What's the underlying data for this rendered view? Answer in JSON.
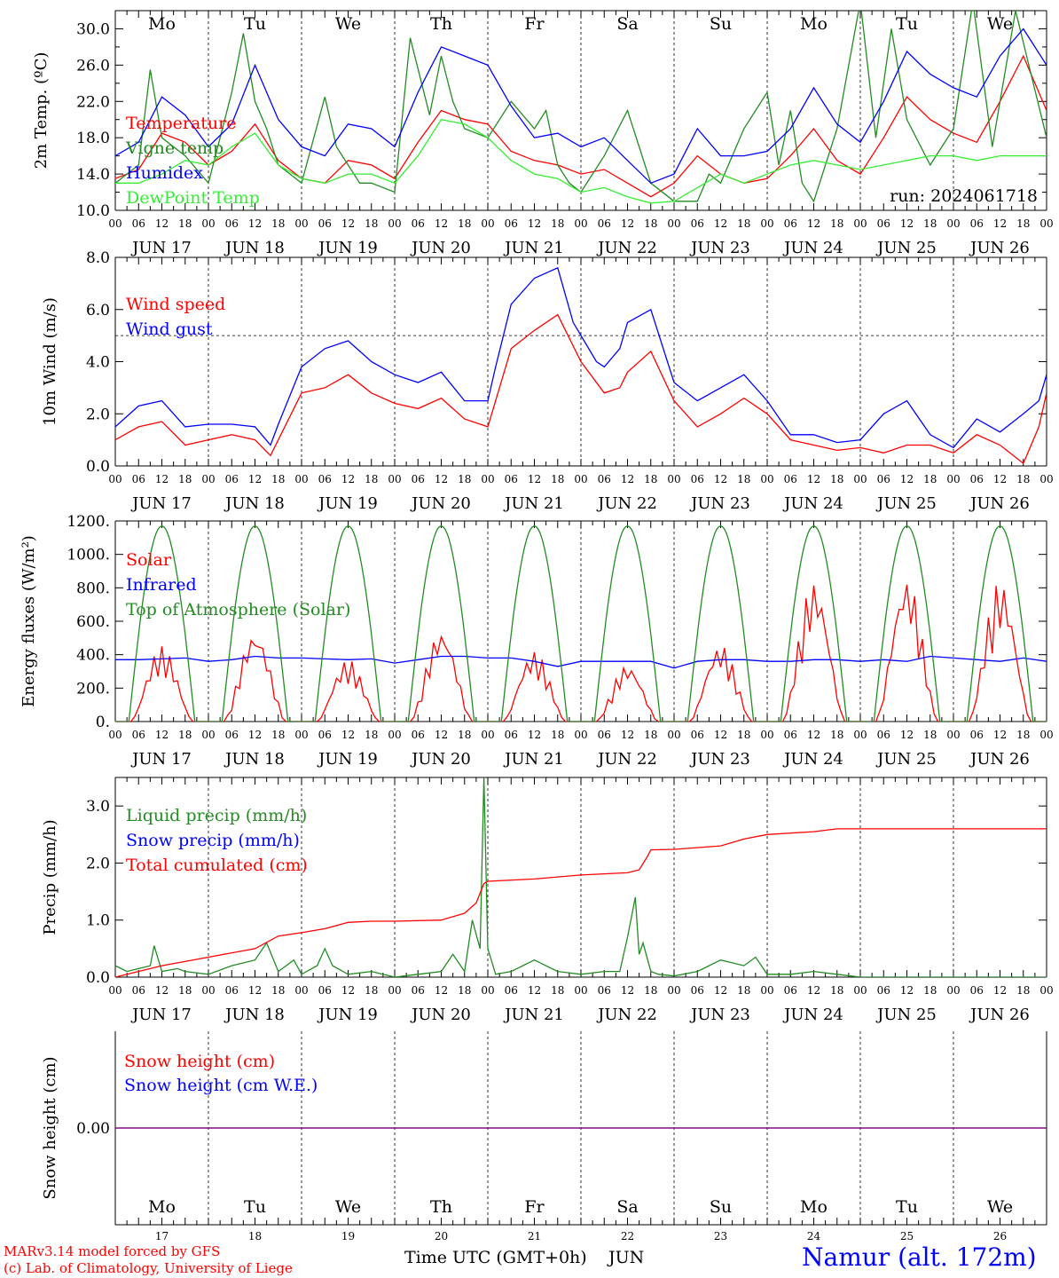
{
  "colors": {
    "red": "#ff0000",
    "green": "#228b22",
    "blue": "#0000ff",
    "light_green": "#33ee33",
    "purple": "#7f007f"
  },
  "days": {
    "weekday_labels": [
      "Mo",
      "Tu",
      "We",
      "Th",
      "Fr",
      "Sa",
      "Su",
      "Mo",
      "Tu",
      "We"
    ],
    "date_labels": [
      "JUN 17",
      "JUN 18",
      "JUN 19",
      "JUN 20",
      "JUN 21",
      "JUN 22",
      "JUN 23",
      "JUN 24",
      "JUN 25",
      "JUN 26"
    ],
    "day_numbers": [
      "17",
      "18",
      "19",
      "20",
      "21",
      "22",
      "23",
      "24",
      "25",
      "26"
    ],
    "hour_labels": [
      "00",
      "06",
      "12",
      "18"
    ],
    "end_hour_label": "00",
    "weekend_color": "#ff0000",
    "weekend_indices": [
      5,
      6
    ]
  },
  "footer": {
    "model_line": "MARv3.14 model forced by GFS",
    "lab_line": "(c) Lab. of Climatology, University of Liege",
    "time_axis_label": "Time UTC (GMT+0h)",
    "month_label": "JUN",
    "station": "Namur (alt. 172m)"
  },
  "chart_data": [
    {
      "type": "line",
      "ylabel": "2m Temp. (ºC)",
      "ylim": [
        10,
        32
      ],
      "yticks": [
        10.0,
        14.0,
        18.0,
        22.0,
        26.0,
        30.0
      ],
      "ytick_labels": [
        "10.0",
        "14.0",
        "18.0",
        "22.0",
        "26.0",
        "30.0"
      ],
      "annotation": "run: 2024061718",
      "x_unit": "hours since JUN 17 00 UTC",
      "series": [
        {
          "name": "Temperature",
          "color": "#ff0000",
          "x": [
            0,
            6,
            12,
            18,
            24,
            30,
            36,
            42,
            48,
            54,
            60,
            66,
            72,
            78,
            84,
            90,
            96,
            102,
            108,
            114,
            120,
            126,
            132,
            138,
            144,
            150,
            156,
            162,
            168,
            174,
            180,
            186,
            192,
            198,
            204,
            210,
            216,
            222,
            228,
            234,
            240
          ],
          "y": [
            13.5,
            14.5,
            18.5,
            17.5,
            15,
            16.5,
            19.5,
            15.5,
            13.5,
            13,
            15.5,
            15,
            13.5,
            17.5,
            21,
            20,
            19.5,
            16.5,
            15.5,
            15,
            14,
            14.5,
            13,
            11.5,
            13,
            16,
            14,
            13,
            13.5,
            16,
            19,
            15.5,
            14,
            18,
            22.5,
            20,
            18.5,
            17.5,
            22,
            27,
            21
          ]
        },
        {
          "name": "Vigne temp",
          "color": "#228b22",
          "x": [
            0,
            6,
            9,
            12,
            15,
            18,
            24,
            30,
            33,
            36,
            39,
            42,
            48,
            54,
            57,
            60,
            63,
            66,
            72,
            76,
            81,
            84,
            87,
            90,
            96,
            102,
            108,
            111,
            114,
            117,
            120,
            126,
            132,
            138,
            144,
            147,
            150,
            153,
            156,
            162,
            168,
            171,
            174,
            177,
            180,
            186,
            192,
            196,
            200,
            204,
            210,
            216,
            221,
            226,
            232,
            236,
            240
          ],
          "y": [
            13,
            15,
            25.5,
            18,
            17,
            16,
            13,
            23,
            29.5,
            22,
            19,
            15,
            13,
            22.5,
            17,
            15,
            13,
            13,
            12,
            29,
            20.5,
            27,
            22,
            19,
            18,
            22,
            19,
            21,
            15,
            13,
            12,
            16,
            21,
            13,
            11,
            11,
            11,
            14,
            13,
            19,
            23,
            15,
            21,
            13,
            11,
            19,
            33,
            18,
            30,
            20,
            15,
            19,
            33,
            17,
            32,
            25,
            18
          ]
        },
        {
          "name": "Humidex",
          "color": "#0000ff",
          "x": [
            0,
            6,
            12,
            18,
            24,
            30,
            36,
            42,
            48,
            54,
            60,
            66,
            72,
            78,
            84,
            90,
            96,
            102,
            108,
            114,
            120,
            126,
            132,
            138,
            144,
            150,
            156,
            162,
            168,
            174,
            180,
            186,
            192,
            198,
            204,
            210,
            216,
            222,
            228,
            234,
            240
          ],
          "y": [
            16,
            17.5,
            22.5,
            20.5,
            17,
            19.5,
            26,
            20,
            17,
            16,
            19.5,
            19,
            17,
            23,
            28,
            27,
            26,
            21.5,
            18,
            18.5,
            17,
            18,
            15.5,
            13,
            14,
            19,
            16,
            16,
            16.5,
            19,
            23.5,
            19.5,
            17.5,
            22,
            27.5,
            25,
            23.5,
            22.5,
            27,
            30,
            26
          ]
        },
        {
          "name": "DewPoint Temp",
          "color": "#33ee33",
          "x": [
            0,
            6,
            12,
            18,
            24,
            30,
            36,
            42,
            48,
            54,
            60,
            66,
            72,
            78,
            84,
            90,
            96,
            102,
            108,
            114,
            120,
            126,
            132,
            138,
            144,
            150,
            156,
            162,
            168,
            174,
            180,
            186,
            192,
            198,
            204,
            210,
            216,
            222,
            228,
            234,
            240
          ],
          "y": [
            13,
            13,
            14,
            15.5,
            15,
            17,
            18.5,
            15,
            13.5,
            13,
            14,
            14,
            13,
            16,
            20,
            19.5,
            18,
            15.5,
            14,
            13.5,
            12,
            12.5,
            11.5,
            10.8,
            11,
            12.5,
            14,
            13,
            14,
            15,
            15.5,
            15,
            14.5,
            15,
            15.5,
            16,
            16,
            15.5,
            16,
            16,
            16
          ]
        }
      ]
    },
    {
      "type": "line",
      "ylabel": "10m Wind (m/s)",
      "ylim": [
        0,
        8
      ],
      "yticks": [
        0,
        2,
        4,
        6,
        8
      ],
      "ytick_labels": [
        "0.0",
        "2.0",
        "4.0",
        "6.0",
        "8.0"
      ],
      "hline": 5,
      "x_unit": "hours since JUN 17 00 UTC",
      "series": [
        {
          "name": "Wind speed",
          "color": "#ff0000",
          "x": [
            0,
            6,
            12,
            18,
            24,
            30,
            36,
            40,
            42,
            48,
            54,
            60,
            66,
            72,
            78,
            84,
            90,
            96,
            98,
            102,
            108,
            114,
            120,
            126,
            130,
            132,
            138,
            144,
            150,
            156,
            162,
            168,
            174,
            180,
            186,
            192,
            198,
            204,
            210,
            216,
            222,
            228,
            234,
            238,
            240
          ],
          "y": [
            1,
            1.5,
            1.7,
            0.8,
            1,
            1.2,
            1,
            0.4,
            1,
            2.8,
            3,
            3.5,
            2.8,
            2.4,
            2.2,
            2.6,
            1.8,
            1.5,
            2.5,
            4.5,
            5.2,
            5.8,
            4,
            2.8,
            3,
            3.6,
            4.4,
            2.5,
            1.5,
            2,
            2.6,
            2,
            1,
            0.8,
            0.6,
            0.7,
            0.5,
            0.8,
            0.8,
            0.5,
            1.2,
            0.8,
            0.1,
            1.5,
            2.8
          ]
        },
        {
          "name": "Wind gust",
          "color": "#0000ff",
          "x": [
            0,
            6,
            12,
            18,
            24,
            30,
            36,
            40,
            42,
            48,
            54,
            60,
            66,
            72,
            78,
            84,
            90,
            96,
            98,
            102,
            108,
            114,
            118,
            124,
            126,
            130,
            132,
            138,
            144,
            150,
            156,
            162,
            168,
            174,
            180,
            186,
            192,
            198,
            204,
            210,
            216,
            222,
            228,
            234,
            238,
            240
          ],
          "y": [
            1.5,
            2.3,
            2.5,
            1.5,
            1.6,
            1.6,
            1.5,
            0.8,
            1.6,
            3.8,
            4.5,
            4.8,
            4,
            3.5,
            3.2,
            3.6,
            2.5,
            2.5,
            3.8,
            6.2,
            7.2,
            7.6,
            5.5,
            4,
            3.8,
            4.5,
            5.5,
            6,
            3.2,
            2.5,
            3,
            3.5,
            2.5,
            1.2,
            1.2,
            0.9,
            1,
            2,
            2.5,
            1.2,
            0.7,
            1.8,
            1.3,
            2,
            2.5,
            3.5
          ]
        }
      ]
    },
    {
      "type": "line",
      "ylabel": "Energy fluxes (W/m²)",
      "ylim": [
        0,
        1200
      ],
      "yticks": [
        0,
        200,
        400,
        600,
        800,
        1000,
        1200
      ],
      "ytick_labels": [
        "0.",
        "200.",
        "400.",
        "600.",
        "800.",
        "1000.",
        "1200."
      ],
      "x_unit": "hours since JUN 17 00 UTC",
      "toa_peak": 1170,
      "series": [
        {
          "name": "Solar",
          "color": "#ff0000",
          "day_peaks": [
            450,
            540,
            370,
            550,
            420,
            340,
            460,
            840,
            860,
            840
          ]
        },
        {
          "name": "Infrared",
          "color": "#0000ff",
          "x": [
            0,
            6,
            12,
            18,
            24,
            30,
            36,
            42,
            48,
            54,
            60,
            66,
            72,
            78,
            84,
            90,
            96,
            102,
            108,
            114,
            120,
            126,
            132,
            138,
            144,
            150,
            156,
            162,
            168,
            174,
            180,
            186,
            192,
            198,
            204,
            210,
            216,
            222,
            228,
            234,
            240
          ],
          "y": [
            370,
            370,
            375,
            380,
            360,
            370,
            390,
            380,
            380,
            375,
            370,
            375,
            350,
            370,
            390,
            390,
            380,
            380,
            360,
            330,
            360,
            360,
            360,
            360,
            320,
            360,
            370,
            370,
            360,
            360,
            370,
            370,
            360,
            370,
            360,
            390,
            380,
            370,
            360,
            380,
            360
          ]
        },
        {
          "name": "Top of Atmosphere (Solar)",
          "color": "#228b22"
        }
      ]
    },
    {
      "type": "line",
      "ylabel": "Precip (mm/h)",
      "ylim": [
        0,
        3.5
      ],
      "yticks": [
        0,
        1,
        2,
        3
      ],
      "ytick_labels": [
        "0.0",
        "1.0",
        "2.0",
        "3.0"
      ],
      "x_unit": "hours since JUN 17 00 UTC",
      "series": [
        {
          "name": "Liquid precip (mm/h)",
          "color": "#228b22",
          "x": [
            0,
            3,
            6,
            9,
            10,
            12,
            16,
            18,
            24,
            30,
            36,
            39,
            42,
            46,
            48,
            52,
            54,
            56,
            60,
            66,
            72,
            78,
            84,
            87,
            90,
            92,
            94,
            95,
            96,
            98,
            102,
            108,
            114,
            120,
            126,
            130,
            132,
            134,
            135,
            136,
            138,
            140,
            144,
            150,
            156,
            162,
            165,
            168,
            174,
            180,
            186,
            192,
            198,
            204,
            210,
            216,
            222,
            228,
            234,
            240
          ],
          "y": [
            0.2,
            0.1,
            0.15,
            0.2,
            0.55,
            0.1,
            0.15,
            0.1,
            0.05,
            0.2,
            0.3,
            0.6,
            0.1,
            0.3,
            0.05,
            0.2,
            0.5,
            0.2,
            0.05,
            0.1,
            0,
            0.05,
            0.1,
            0.4,
            0.1,
            1,
            0.5,
            3.5,
            0.5,
            0.05,
            0.1,
            0.3,
            0.1,
            0.05,
            0.1,
            0.1,
            0.7,
            1.4,
            0.4,
            0.6,
            0.1,
            0.05,
            0.02,
            0.1,
            0.3,
            0.2,
            0.35,
            0.05,
            0.05,
            0.1,
            0.05,
            0,
            0,
            0,
            0,
            0,
            0,
            0,
            0,
            0
          ]
        },
        {
          "name": "Snow precip (mm/h)",
          "color": "#0000ff",
          "x": [
            0,
            240
          ],
          "y": [
            0,
            0
          ]
        },
        {
          "name": "Total cumulated (cm)",
          "color": "#ff0000",
          "x": [
            0,
            12,
            24,
            36,
            42,
            48,
            54,
            60,
            66,
            72,
            84,
            90,
            93,
            95,
            96,
            108,
            120,
            132,
            135,
            137,
            138,
            144,
            156,
            162,
            168,
            180,
            186,
            192,
            204,
            216,
            228,
            240
          ],
          "y": [
            0,
            0.2,
            0.35,
            0.5,
            0.72,
            0.78,
            0.85,
            0.96,
            0.98,
            0.98,
            1.0,
            1.12,
            1.3,
            1.64,
            1.68,
            1.72,
            1.79,
            1.83,
            1.88,
            2.1,
            2.23,
            2.24,
            2.3,
            2.42,
            2.5,
            2.55,
            2.6,
            2.6,
            2.6,
            2.6,
            2.6,
            2.6
          ]
        }
      ]
    },
    {
      "type": "line",
      "ylabel": "Snow height (cm)",
      "ylim": [
        -1,
        1
      ],
      "yticks": [
        0
      ],
      "ytick_labels": [
        "0.00"
      ],
      "x_unit": "hours since JUN 17 00 UTC",
      "series": [
        {
          "name": "Snow height (cm)",
          "color": "#ff0000",
          "x": [
            0,
            240
          ],
          "y": [
            0,
            0
          ]
        },
        {
          "name": "Snow height (cm W.E.)",
          "color": "#0000ff",
          "x": [
            0,
            240
          ],
          "y": [
            0,
            0
          ]
        }
      ]
    }
  ]
}
